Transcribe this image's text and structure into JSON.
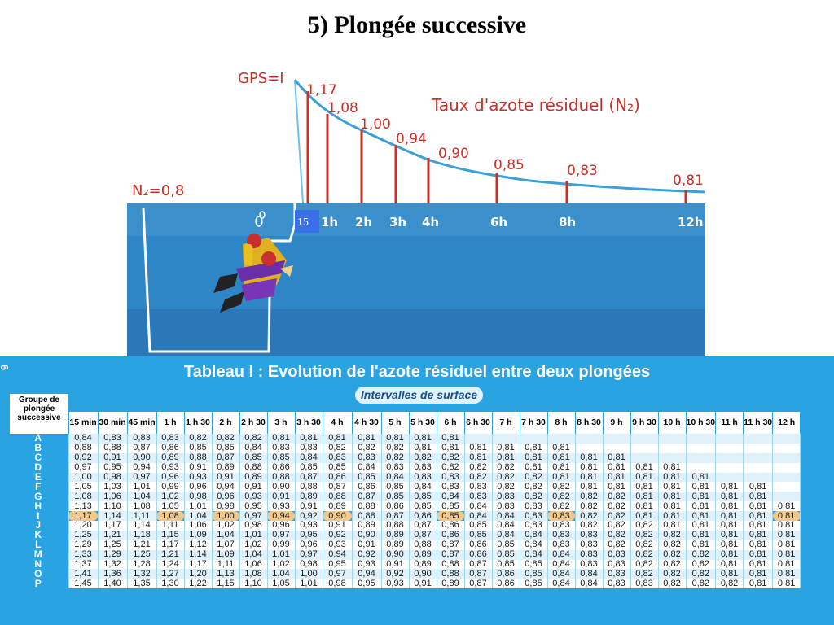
{
  "title": "5) Plongée successive",
  "diagram": {
    "gps_label": "GPS=I",
    "n2_label": "N₂=0,8",
    "curve_title": "Taux d'azote résiduel (N₂)",
    "box_label": "15",
    "curve_values": [
      "1,17",
      "1,08",
      "1,00",
      "0,94",
      "0,90",
      "0,85",
      "0,83",
      "0,81"
    ],
    "time_labels": [
      "1h",
      "2h",
      "3h",
      "4h",
      "6h",
      "8h",
      "12h"
    ],
    "colors": {
      "sky": "#ffffff",
      "sea": "#2a84c4",
      "curve": "#3aa0d8",
      "bars": "#c8302a",
      "text": "#c8302a"
    }
  },
  "table": {
    "number": "6",
    "title": "Tableau I : Evolution de l'azote résiduel entre deux plongées",
    "subtitle": "Intervalles de surface",
    "group_header": "Groupe de plongée successive",
    "columns": [
      "15 min",
      "30 min",
      "45 min",
      "1 h",
      "1 h 30",
      "2 h",
      "2 h 30",
      "3 h",
      "3 h 30",
      "4 h",
      "4 h 30",
      "5 h",
      "5 h 30",
      "6 h",
      "6 h 30",
      "7 h",
      "7 h 30",
      "8 h",
      "8 h 30",
      "9 h",
      "9 h 30",
      "10 h",
      "10 h 30",
      "11 h",
      "11 h 30",
      "12 h"
    ],
    "rows": [
      {
        "g": "A",
        "v": [
          "0,84",
          "0,83",
          "0,83",
          "0,83",
          "0,82",
          "0,82",
          "0,82",
          "0,81",
          "0,81",
          "0,81",
          "0,81",
          "0,81",
          "0,81",
          "0,81",
          "",
          "",
          "",
          "",
          "",
          "",
          "",
          "",
          "",
          "",
          "",
          ""
        ]
      },
      {
        "g": "B",
        "v": [
          "0,88",
          "0,88",
          "0,87",
          "0,86",
          "0,85",
          "0,85",
          "0,84",
          "0,83",
          "0,83",
          "0,82",
          "0,82",
          "0,82",
          "0,81",
          "0,81",
          "0,81",
          "0,81",
          "0,81",
          "0,81",
          "",
          "",
          "",
          "",
          "",
          "",
          "",
          ""
        ]
      },
      {
        "g": "C",
        "v": [
          "0,92",
          "0,91",
          "0,90",
          "0,89",
          "0,88",
          "0,87",
          "0,85",
          "0,85",
          "0,84",
          "0,83",
          "0,83",
          "0,82",
          "0,82",
          "0,82",
          "0,81",
          "0,81",
          "0,81",
          "0,81",
          "0,81",
          "0,81",
          "",
          "",
          "",
          "",
          "",
          ""
        ]
      },
      {
        "g": "D",
        "v": [
          "0,97",
          "0,95",
          "0,94",
          "0,93",
          "0,91",
          "0,89",
          "0,88",
          "0,86",
          "0,85",
          "0,85",
          "0,84",
          "0,83",
          "0,83",
          "0,82",
          "0,82",
          "0,82",
          "0,81",
          "0,81",
          "0,81",
          "0,81",
          "0,81",
          "0,81",
          "",
          "",
          "",
          ""
        ]
      },
      {
        "g": "E",
        "v": [
          "1,00",
          "0,98",
          "0,97",
          "0,96",
          "0,93",
          "0,91",
          "0,89",
          "0,88",
          "0,87",
          "0,86",
          "0,85",
          "0,84",
          "0,83",
          "0,83",
          "0,82",
          "0,82",
          "0,82",
          "0,81",
          "0,81",
          "0,81",
          "0,81",
          "0,81",
          "0,81",
          "",
          "",
          ""
        ]
      },
      {
        "g": "F",
        "v": [
          "1,05",
          "1,03",
          "1,01",
          "0,99",
          "0,96",
          "0,94",
          "0,91",
          "0,90",
          "0,88",
          "0,87",
          "0,86",
          "0,85",
          "0,84",
          "0,83",
          "0,83",
          "0,82",
          "0,82",
          "0,82",
          "0,81",
          "0,81",
          "0,81",
          "0,81",
          "0,81",
          "0,81",
          "0,81",
          ""
        ]
      },
      {
        "g": "G",
        "v": [
          "1,08",
          "1,06",
          "1,04",
          "1,02",
          "0,98",
          "0,96",
          "0,93",
          "0,91",
          "0,89",
          "0,88",
          "0,87",
          "0,85",
          "0,85",
          "0,84",
          "0,83",
          "0,83",
          "0,82",
          "0,82",
          "0,82",
          "0,82",
          "0,81",
          "0,81",
          "0,81",
          "0,81",
          "0,81",
          ""
        ]
      },
      {
        "g": "H",
        "v": [
          "1,13",
          "1,10",
          "1,08",
          "1,05",
          "1,01",
          "0,98",
          "0,95",
          "0,93",
          "0,91",
          "0,89",
          "0,88",
          "0,86",
          "0,85",
          "0,85",
          "0,84",
          "0,83",
          "0,83",
          "0,82",
          "0,82",
          "0,82",
          "0,81",
          "0,81",
          "0,81",
          "0,81",
          "0,81",
          "0,81"
        ]
      },
      {
        "g": "I",
        "v": [
          "1,17",
          "1,14",
          "1,11",
          "1,08",
          "1,04",
          "1,00",
          "0,97",
          "0,94",
          "0,92",
          "0,90",
          "0,88",
          "0,87",
          "0,86",
          "0,85",
          "0,84",
          "0,84",
          "0,83",
          "0,83",
          "0,82",
          "0,82",
          "0,81",
          "0,81",
          "0,81",
          "0,81",
          "0,81",
          "0,81"
        ]
      },
      {
        "g": "J",
        "v": [
          "1,20",
          "1,17",
          "1,14",
          "1,11",
          "1,06",
          "1,02",
          "0,98",
          "0,96",
          "0,93",
          "0,91",
          "0,89",
          "0,88",
          "0,87",
          "0,86",
          "0,85",
          "0,84",
          "0,83",
          "0,83",
          "0,82",
          "0,82",
          "0,82",
          "0,81",
          "0,81",
          "0,81",
          "0,81",
          "0,81"
        ]
      },
      {
        "g": "K",
        "v": [
          "1,25",
          "1,21",
          "1,18",
          "1,15",
          "1,09",
          "1,04",
          "1,01",
          "0,97",
          "0,95",
          "0,92",
          "0,90",
          "0,89",
          "0,87",
          "0,86",
          "0,85",
          "0,84",
          "0,84",
          "0,83",
          "0,83",
          "0,82",
          "0,82",
          "0,82",
          "0,81",
          "0,81",
          "0,81",
          "0,81"
        ]
      },
      {
        "g": "L",
        "v": [
          "1,29",
          "1,25",
          "1,21",
          "1,17",
          "1,12",
          "1,07",
          "1,02",
          "0,99",
          "0,96",
          "0,93",
          "0,91",
          "0,89",
          "0,88",
          "0,87",
          "0,86",
          "0,85",
          "0,84",
          "0,83",
          "0,83",
          "0,82",
          "0,82",
          "0,82",
          "0,81",
          "0,81",
          "0,81",
          "0,81"
        ]
      },
      {
        "g": "M",
        "v": [
          "1,33",
          "1,29",
          "1,25",
          "1,21",
          "1,14",
          "1,09",
          "1,04",
          "1,01",
          "0,97",
          "0,94",
          "0,92",
          "0,90",
          "0,89",
          "0,87",
          "0,86",
          "0,85",
          "0,84",
          "0,84",
          "0,83",
          "0,83",
          "0,82",
          "0,82",
          "0,82",
          "0,81",
          "0,81",
          "0,81"
        ]
      },
      {
        "g": "N",
        "v": [
          "1,37",
          "1,32",
          "1,28",
          "1,24",
          "1,17",
          "1,11",
          "1,06",
          "1,02",
          "0,98",
          "0,95",
          "0,93",
          "0,91",
          "0,89",
          "0,88",
          "0,87",
          "0,85",
          "0,85",
          "0,84",
          "0,83",
          "0,83",
          "0,82",
          "0,82",
          "0,82",
          "0,81",
          "0,81",
          "0,81"
        ]
      },
      {
        "g": "O",
        "v": [
          "1,41",
          "1,36",
          "1,32",
          "1,27",
          "1,20",
          "1,13",
          "1,08",
          "1,04",
          "1,00",
          "0,97",
          "0,94",
          "0,92",
          "0,90",
          "0,88",
          "0,87",
          "0,86",
          "0,85",
          "0,84",
          "0,84",
          "0,83",
          "0,82",
          "0,82",
          "0,82",
          "0,81",
          "0,81",
          "0,81"
        ]
      },
      {
        "g": "P",
        "v": [
          "1,45",
          "1,40",
          "1,35",
          "1,30",
          "1,22",
          "1,15",
          "1,10",
          "1,05",
          "1,01",
          "0,98",
          "0,95",
          "0,93",
          "0,91",
          "0,89",
          "0,87",
          "0,86",
          "0,85",
          "0,84",
          "0,84",
          "0,83",
          "0,83",
          "0,82",
          "0,82",
          "0,82",
          "0,81",
          "0,81"
        ]
      }
    ],
    "highlight_row": "I",
    "highlight_cols": [
      0,
      3,
      5,
      7,
      9,
      13,
      17,
      25
    ]
  }
}
